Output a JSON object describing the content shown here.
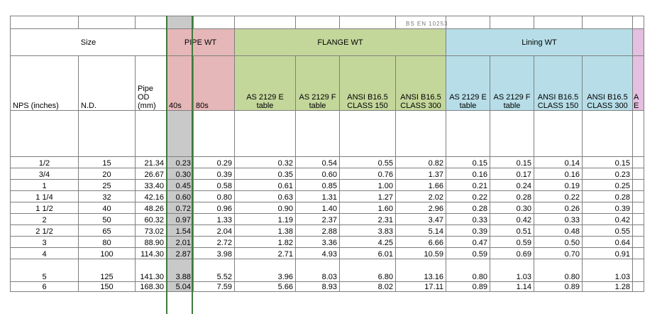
{
  "top_note": "BS EN 10253",
  "groups": {
    "size": "Size",
    "pipe_wt": "PIPE WT",
    "flange_wt": "FLANGE WT",
    "lining_wt": "Lining WT"
  },
  "headers": {
    "nps": "NPS (inches)",
    "nd": "N.D.",
    "od": "Pipe OD (mm)",
    "s40": "40s",
    "s80": "80s",
    "fl": [
      "AS 2129 E table",
      "AS 2129 F table",
      "ANSI B16.5 CLASS 150",
      "ANSI B16.5 CLASS 300"
    ],
    "ln": [
      "AS 2129 E table",
      "AS 2129 F table",
      "ANSI B16.5 CLASS 150",
      "ANSI B16.5 CLASS 300"
    ],
    "partial": "A E"
  },
  "rows": [
    {
      "nps": "1/2",
      "nd": "15",
      "od": "21.34",
      "s40": "0.23",
      "s80": "0.29",
      "fl": [
        "0.32",
        "0.54",
        "0.55",
        "0.82"
      ],
      "ln": [
        "0.15",
        "0.15",
        "0.14",
        "0.15"
      ]
    },
    {
      "nps": "3/4",
      "nd": "20",
      "od": "26.67",
      "s40": "0.30",
      "s80": "0.39",
      "fl": [
        "0.35",
        "0.60",
        "0.76",
        "1.37"
      ],
      "ln": [
        "0.16",
        "0.17",
        "0.16",
        "0.23"
      ]
    },
    {
      "nps": "1",
      "nd": "25",
      "od": "33.40",
      "s40": "0.45",
      "s80": "0.58",
      "fl": [
        "0.61",
        "0.85",
        "1.00",
        "1.66"
      ],
      "ln": [
        "0.21",
        "0.24",
        "0.19",
        "0.25"
      ]
    },
    {
      "nps": "1 1/4",
      "nd": "32",
      "od": "42.16",
      "s40": "0.60",
      "s80": "0.80",
      "fl": [
        "0.63",
        "1.31",
        "1.27",
        "2.02"
      ],
      "ln": [
        "0.22",
        "0.28",
        "0.22",
        "0.28"
      ]
    },
    {
      "nps": "1 1/2",
      "nd": "40",
      "od": "48.26",
      "s40": "0.72",
      "s80": "0.96",
      "fl": [
        "0.90",
        "1.40",
        "1.60",
        "2.96"
      ],
      "ln": [
        "0.28",
        "0.30",
        "0.26",
        "0.39"
      ]
    },
    {
      "nps": "2",
      "nd": "50",
      "od": "60.32",
      "s40": "0.97",
      "s80": "1.33",
      "fl": [
        "1.19",
        "2.37",
        "2.31",
        "3.47"
      ],
      "ln": [
        "0.33",
        "0.42",
        "0.33",
        "0.42"
      ]
    },
    {
      "nps": "2 1/2",
      "nd": "65",
      "od": "73.02",
      "s40": "1.54",
      "s80": "2.04",
      "fl": [
        "1.38",
        "2.88",
        "3.83",
        "5.14"
      ],
      "ln": [
        "0.39",
        "0.51",
        "0.48",
        "0.55"
      ]
    },
    {
      "nps": "3",
      "nd": "80",
      "od": "88.90",
      "s40": "2.01",
      "s80": "2.72",
      "fl": [
        "1.82",
        "3.36",
        "4.25",
        "6.66"
      ],
      "ln": [
        "0.47",
        "0.59",
        "0.50",
        "0.64"
      ]
    },
    {
      "nps": "4",
      "nd": "100",
      "od": "114.30",
      "s40": "2.87",
      "s80": "3.98",
      "fl": [
        "2.71",
        "4.93",
        "6.01",
        "10.59"
      ],
      "ln": [
        "0.59",
        "0.69",
        "0.70",
        "0.91"
      ]
    },
    {
      "nps": "5",
      "nd": "125",
      "od": "141.30",
      "s40": "3.88",
      "s80": "5.52",
      "fl": [
        "3.96",
        "8.03",
        "6.80",
        "13.16"
      ],
      "ln": [
        "0.80",
        "1.03",
        "0.80",
        "1.03"
      ]
    },
    {
      "nps": "6",
      "nd": "150",
      "od": "168.30",
      "s40": "5.04",
      "s80": "7.59",
      "fl": [
        "5.66",
        "8.93",
        "8.02",
        "17.11"
      ],
      "ln": [
        "0.89",
        "1.14",
        "0.89",
        "1.28"
      ]
    }
  ],
  "colors": {
    "selected_column": "#c9c9c9",
    "pipe_wt": "#e6b7b8",
    "flange_wt": "#c4d79b",
    "lining_wt": "#b7dee8",
    "next_group": "#e4bfe0",
    "selection_border": "#3d7a3d",
    "grid": "#7f7f7f"
  }
}
